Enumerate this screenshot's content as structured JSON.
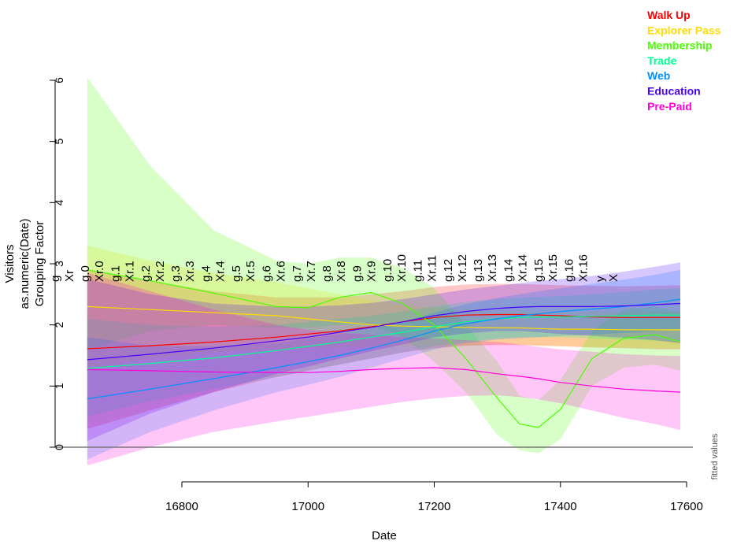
{
  "chart_data": {
    "type": "line",
    "title": "",
    "xlabel": "Date",
    "ylabel_lines": [
      "Visitors",
      "as.numeric(Date)",
      "Grouping Factor"
    ],
    "right_label": "fitted values",
    "xlim": [
      16650,
      17590
    ],
    "ylim": [
      0,
      6
    ],
    "x_ticks": [
      16800,
      17000,
      17200,
      17400,
      17600
    ],
    "y_ticks": [
      0,
      1,
      2,
      3,
      4,
      5,
      6
    ],
    "grid": false,
    "legend_position": "top-right",
    "term_labels": [
      "g",
      "Xr",
      "g.0",
      "Xr.0",
      "g.1",
      "Xr.1",
      "g.2",
      "Xr.2",
      "g.3",
      "Xr.3",
      "g.4",
      "Xr.4",
      "g.5",
      "Xr.5",
      "g.6",
      "Xr.6",
      "g.7",
      "Xr.7",
      "g.8",
      "Xr.8",
      "g.9",
      "Xr.9",
      "g.10",
      "Xr.10",
      "g.11",
      "Xr.11",
      "g.12",
      "Xr.12",
      "g.13",
      "Xr.13",
      "g.14",
      "Xr.14",
      "g.15",
      "Xr.15",
      "g.16",
      "Xr.16",
      "y",
      "X"
    ],
    "x": [
      16650,
      16750,
      16850,
      16950,
      17000,
      17050,
      17100,
      17150,
      17200,
      17250,
      17300,
      17335,
      17365,
      17400,
      17450,
      17500,
      17550,
      17590
    ],
    "series": [
      {
        "name": "Walk Up",
        "color": "#FF0000",
        "fit": [
          1.61,
          1.66,
          1.72,
          1.8,
          1.85,
          1.9,
          1.97,
          2.05,
          2.12,
          2.16,
          2.17,
          2.17,
          2.16,
          2.15,
          2.13,
          2.12,
          2.12,
          2.12
        ],
        "lower": [
          0.3,
          0.6,
          0.9,
          1.15,
          1.25,
          1.35,
          1.45,
          1.55,
          1.62,
          1.66,
          1.67,
          1.67,
          1.66,
          1.65,
          1.63,
          1.62,
          1.6,
          1.6
        ],
        "upper": [
          2.9,
          2.72,
          2.55,
          2.45,
          2.45,
          2.45,
          2.5,
          2.55,
          2.62,
          2.66,
          2.67,
          2.67,
          2.66,
          2.65,
          2.64,
          2.63,
          2.64,
          2.65
        ]
      },
      {
        "name": "Explorer Pass",
        "color": "#FFDB00",
        "fit": [
          2.3,
          2.25,
          2.2,
          2.15,
          2.1,
          2.05,
          2.0,
          1.98,
          1.97,
          1.96,
          1.95,
          1.95,
          1.94,
          1.93,
          1.93,
          1.92,
          1.92,
          1.92
        ],
        "lower": [
          1.3,
          1.45,
          1.55,
          1.6,
          1.62,
          1.63,
          1.64,
          1.65,
          1.66,
          1.67,
          1.68,
          1.68,
          1.66,
          1.65,
          1.64,
          1.63,
          1.62,
          1.62
        ],
        "upper": [
          3.3,
          3.05,
          2.85,
          2.7,
          2.6,
          2.5,
          2.4,
          2.32,
          2.28,
          2.25,
          2.22,
          2.22,
          2.22,
          2.21,
          2.22,
          2.22,
          2.22,
          2.22
        ]
      },
      {
        "name": "Membership",
        "color": "#49FF00",
        "fit": [
          2.9,
          2.72,
          2.52,
          2.3,
          2.28,
          2.45,
          2.53,
          2.35,
          2.0,
          1.45,
          0.8,
          0.38,
          0.32,
          0.62,
          1.45,
          1.78,
          1.84,
          1.72
        ],
        "lower": [
          1.6,
          1.9,
          2.0,
          1.95,
          1.95,
          2.0,
          2.0,
          1.8,
          1.4,
          0.9,
          0.2,
          -0.05,
          -0.1,
          0.13,
          1.0,
          1.3,
          1.35,
          1.25
        ],
        "upper": [
          6.05,
          4.6,
          3.55,
          3.05,
          3.0,
          3.1,
          3.1,
          2.93,
          2.6,
          2.0,
          1.4,
          0.84,
          0.77,
          1.1,
          1.9,
          2.25,
          2.3,
          2.2
        ]
      },
      {
        "name": "Trade",
        "color": "#00FF92",
        "fit": [
          1.29,
          1.37,
          1.46,
          1.58,
          1.65,
          1.72,
          1.8,
          1.88,
          1.97,
          2.05,
          2.1,
          2.12,
          2.13,
          2.13,
          2.14,
          2.15,
          2.16,
          2.16
        ],
        "lower": [
          0.5,
          0.75,
          0.95,
          1.15,
          1.25,
          1.35,
          1.45,
          1.55,
          1.65,
          1.72,
          1.78,
          1.8,
          1.8,
          1.8,
          1.78,
          1.76,
          1.74,
          1.72
        ],
        "upper": [
          2.1,
          2.0,
          1.97,
          2.0,
          2.05,
          2.1,
          2.15,
          2.22,
          2.3,
          2.38,
          2.42,
          2.44,
          2.46,
          2.47,
          2.5,
          2.54,
          2.58,
          2.6
        ]
      },
      {
        "name": "Web",
        "color": "#0092FF",
        "fit": [
          0.79,
          0.95,
          1.12,
          1.3,
          1.4,
          1.5,
          1.62,
          1.75,
          1.9,
          2.02,
          2.1,
          2.15,
          2.18,
          2.22,
          2.26,
          2.3,
          2.36,
          2.42
        ],
        "lower": [
          -0.2,
          0.25,
          0.6,
          0.9,
          1.02,
          1.15,
          1.3,
          1.45,
          1.6,
          1.7,
          1.76,
          1.78,
          1.8,
          1.82,
          1.84,
          1.87,
          1.9,
          1.93
        ],
        "upper": [
          1.8,
          1.65,
          1.65,
          1.7,
          1.78,
          1.85,
          1.95,
          2.05,
          2.2,
          2.34,
          2.44,
          2.5,
          2.55,
          2.6,
          2.67,
          2.74,
          2.82,
          2.9
        ]
      },
      {
        "name": "Education",
        "color": "#4900FF",
        "fit": [
          1.43,
          1.52,
          1.62,
          1.74,
          1.8,
          1.88,
          1.96,
          2.05,
          2.15,
          2.22,
          2.27,
          2.29,
          2.3,
          2.3,
          2.3,
          2.31,
          2.33,
          2.35
        ],
        "lower": [
          0.1,
          0.55,
          0.9,
          1.2,
          1.32,
          1.45,
          1.57,
          1.68,
          1.8,
          1.86,
          1.9,
          1.9,
          1.88,
          1.85,
          1.82,
          1.79,
          1.75,
          1.7
        ],
        "upper": [
          2.75,
          2.5,
          2.35,
          2.3,
          2.3,
          2.32,
          2.36,
          2.42,
          2.5,
          2.58,
          2.64,
          2.68,
          2.72,
          2.75,
          2.8,
          2.87,
          2.95,
          3.02
        ]
      },
      {
        "name": "Pre-Paid",
        "color": "#FF00DB",
        "fit": [
          1.27,
          1.25,
          1.23,
          1.22,
          1.22,
          1.24,
          1.27,
          1.29,
          1.3,
          1.27,
          1.2,
          1.16,
          1.12,
          1.06,
          1.0,
          0.95,
          0.92,
          0.9
        ],
        "lower": [
          -0.3,
          0.0,
          0.25,
          0.42,
          0.5,
          0.58,
          0.66,
          0.74,
          0.8,
          0.84,
          0.85,
          0.82,
          0.78,
          0.72,
          0.6,
          0.48,
          0.38,
          0.28
        ],
        "upper": [
          2.85,
          2.55,
          2.25,
          2.0,
          1.92,
          1.87,
          1.84,
          1.8,
          1.78,
          1.75,
          1.72,
          1.68,
          1.64,
          1.6,
          1.56,
          1.52,
          1.5,
          1.49
        ]
      }
    ]
  }
}
